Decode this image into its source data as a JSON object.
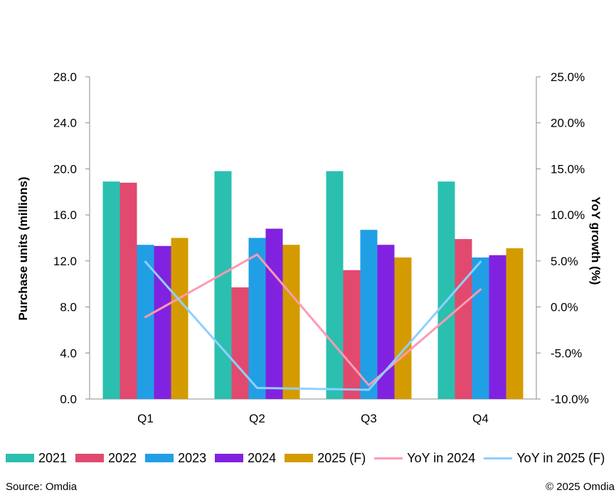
{
  "chart_data": {
    "type": "bar",
    "categories": [
      "Q1",
      "Q2",
      "Q3",
      "Q4"
    ],
    "ylabel": "Purchase units (millions)",
    "y2label": "YoY growth (%)",
    "ylim": [
      0,
      28
    ],
    "yticks": [
      "0.0",
      "4.0",
      "8.0",
      "12.0",
      "16.0",
      "20.0",
      "24.0",
      "28.0"
    ],
    "y2lim": [
      -10,
      25
    ],
    "y2ticks": [
      "-10.0%",
      "-5.0%",
      "0.0%",
      "5.0%",
      "10.0%",
      "15.0%",
      "20.0%",
      "25.0%"
    ],
    "series": [
      {
        "name": "2021",
        "kind": "bar",
        "color": "#2bbfb0",
        "values": [
          18.9,
          19.8,
          19.8,
          18.9
        ]
      },
      {
        "name": "2022",
        "kind": "bar",
        "color": "#e14a6e",
        "values": [
          18.8,
          9.7,
          11.2,
          13.9
        ]
      },
      {
        "name": "2023",
        "kind": "bar",
        "color": "#219fe5",
        "values": [
          13.4,
          14.0,
          14.7,
          12.3
        ]
      },
      {
        "name": "2024",
        "kind": "bar",
        "color": "#8122e0",
        "values": [
          13.3,
          14.8,
          13.4,
          12.5
        ]
      },
      {
        "name": "2025 (F)",
        "kind": "bar",
        "color": "#d49b00",
        "values": [
          14.0,
          13.4,
          12.3,
          13.1
        ]
      },
      {
        "name": "YoY in 2024",
        "kind": "line",
        "axis": "right",
        "color": "#ff9ab0",
        "values": [
          -1.1,
          5.7,
          -8.5,
          1.9
        ]
      },
      {
        "name": "YoY in 2025 (F)",
        "kind": "line",
        "axis": "right",
        "color": "#8fd0ff",
        "values": [
          4.9,
          -8.8,
          -9.0,
          4.9
        ]
      }
    ],
    "legend_position": "bottom",
    "grid": false
  },
  "footer": {
    "source": "Source: Omdia",
    "copyright": "© 2025 Omdia"
  }
}
